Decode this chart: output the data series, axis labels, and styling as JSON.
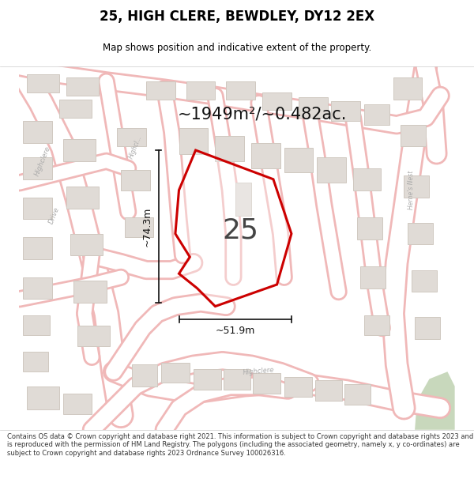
{
  "title": "25, HIGH CLERE, BEWDLEY, DY12 2EX",
  "subtitle": "Map shows position and indicative extent of the property.",
  "area_text": "~1949m²/~0.482ac.",
  "label_25": "25",
  "dim_width": "~51.9m",
  "dim_height": "~74.3m",
  "footer": "Contains OS data © Crown copyright and database right 2021. This information is subject to Crown copyright and database rights 2023 and is reproduced with the permission of HM Land Registry. The polygons (including the associated geometry, namely x, y co-ordinates) are subject to Crown copyright and database rights 2023 Ordnance Survey 100026316.",
  "map_bg": "#f2eeea",
  "road_fill": "#ffffff",
  "road_outline": "#f0b8b8",
  "plot_outline": "#cc0000",
  "building_fill": "#e0dbd6",
  "building_outline": "#d0c8c0",
  "dim_color": "#111111",
  "title_color": "#000000",
  "footer_color": "#333333",
  "green_area": "#c8d8bc",
  "label_color": "#444444",
  "street_label_color": "#aaaaaa"
}
